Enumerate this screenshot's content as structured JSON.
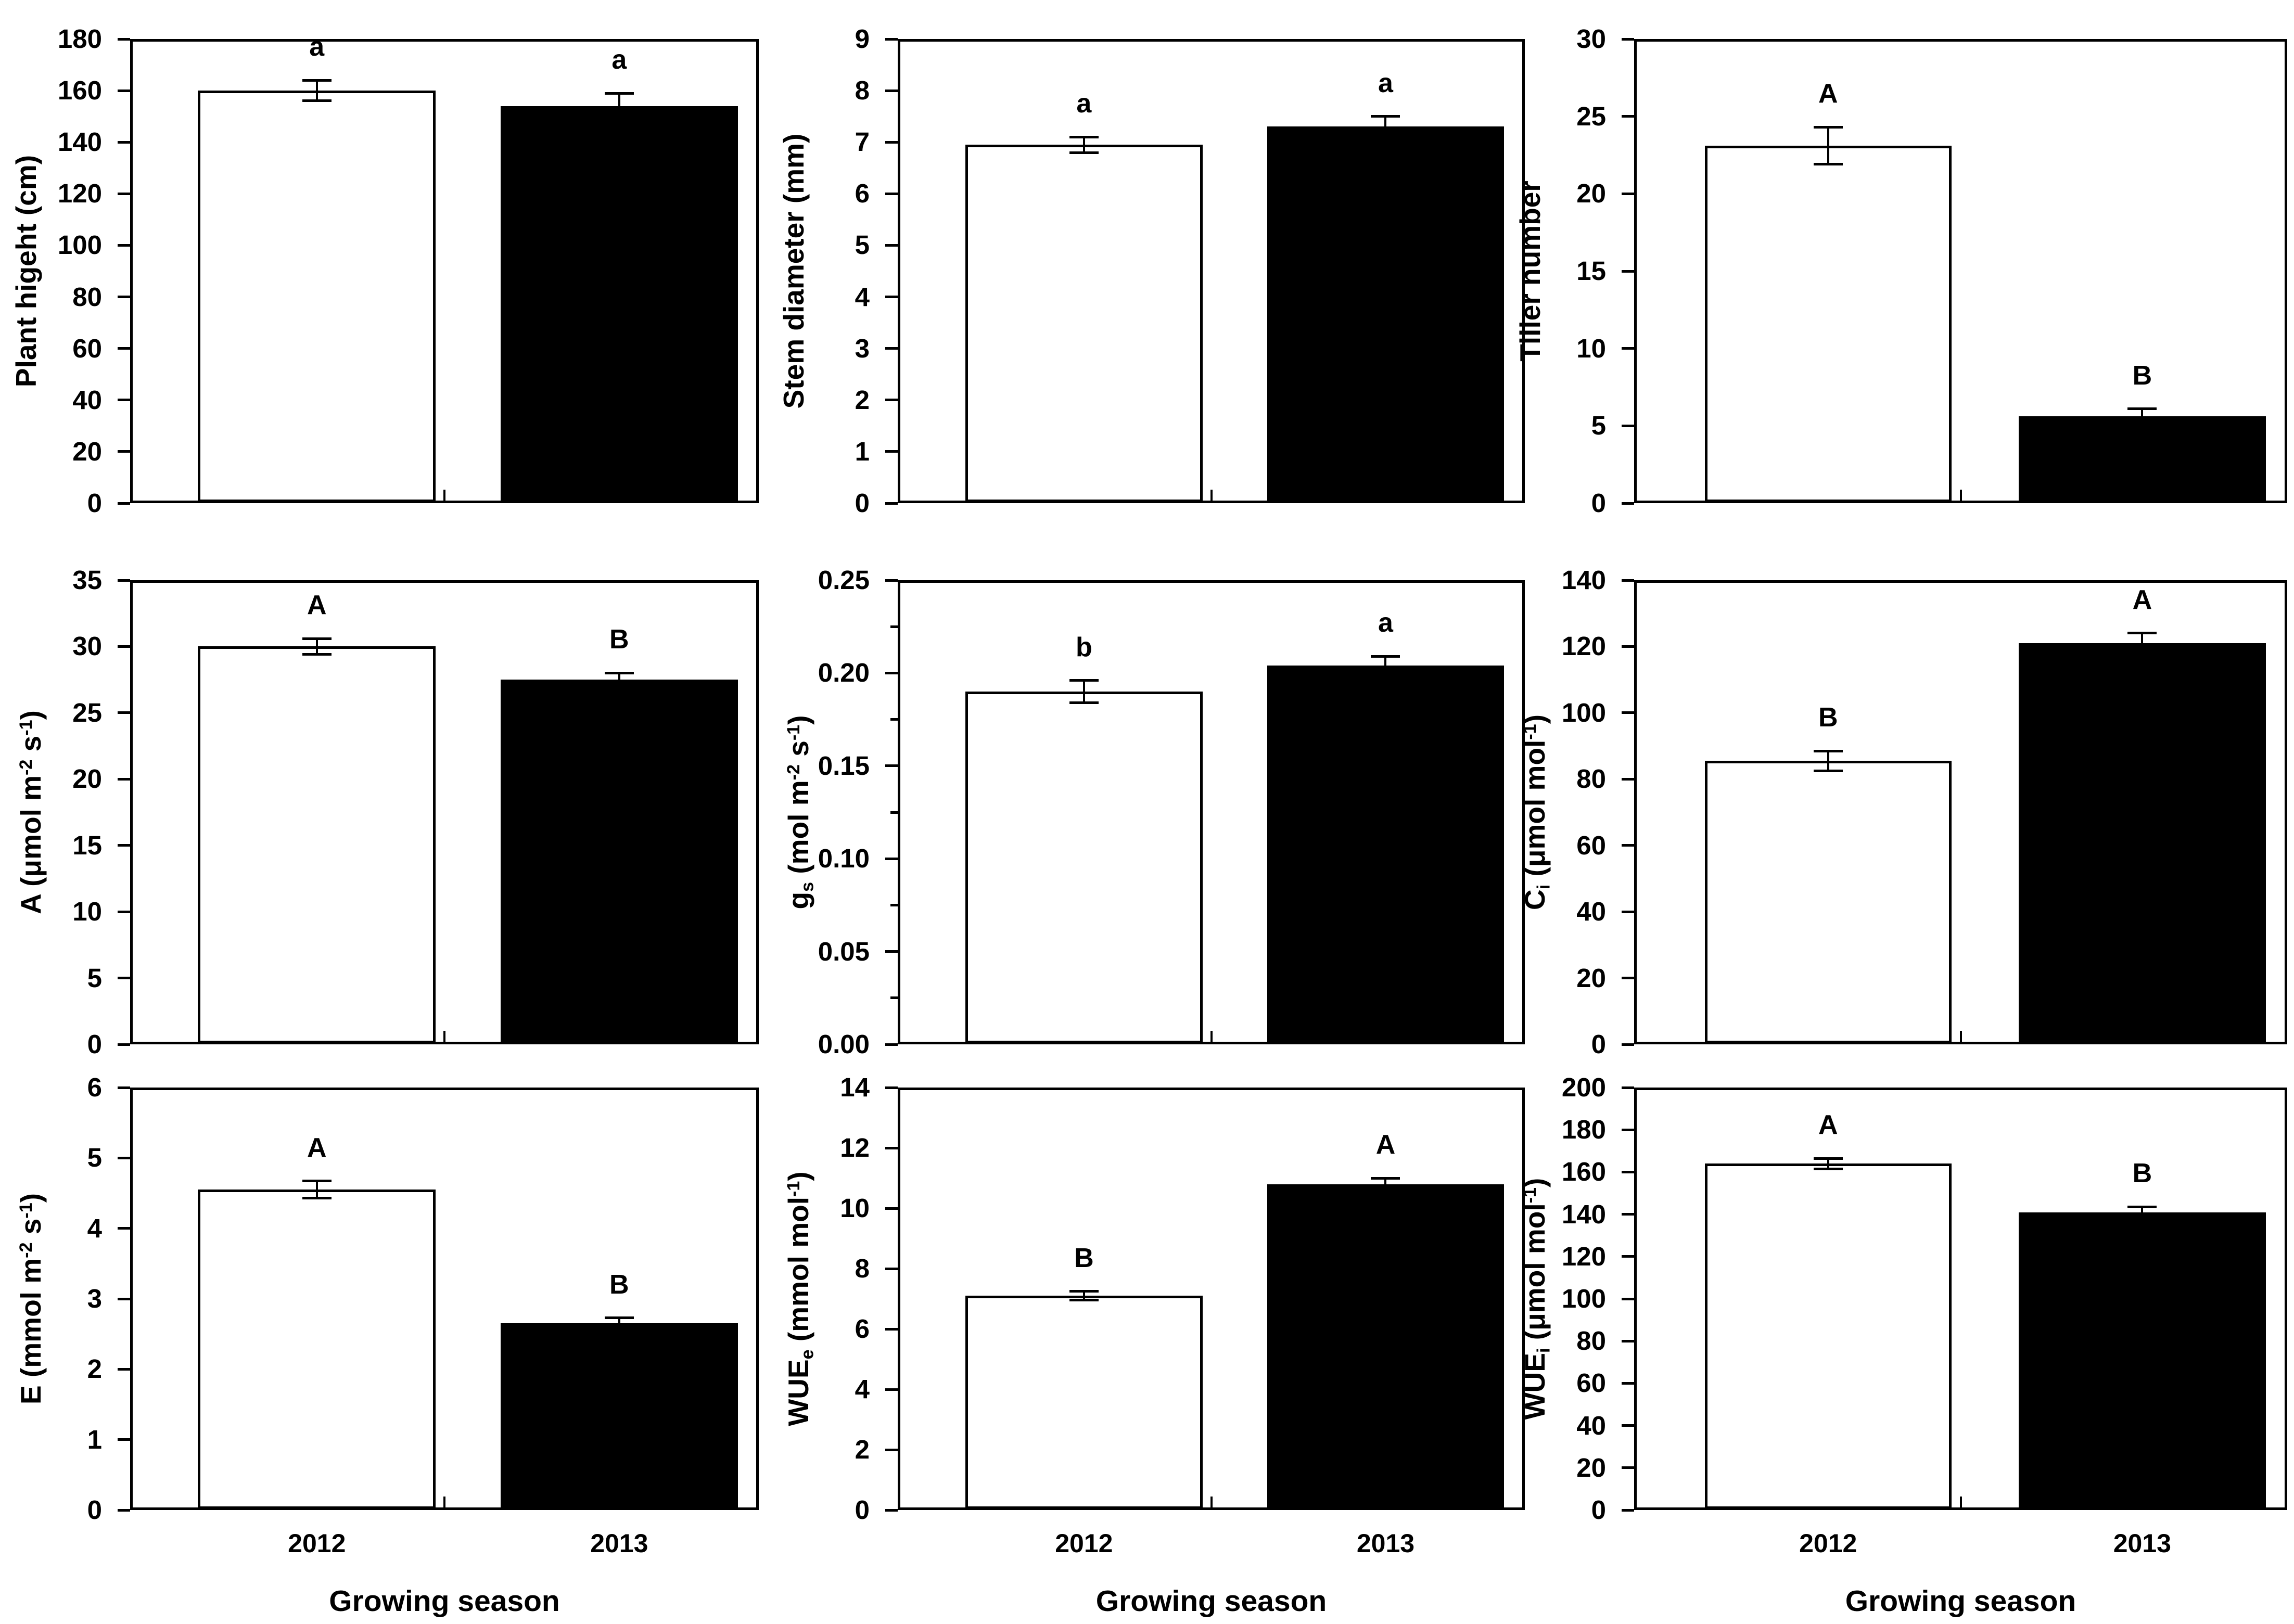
{
  "figure": {
    "background": "#ffffff",
    "frame_color": "#000000",
    "bar_fill_2012": "#ffffff",
    "bar_fill_2013": "#000000",
    "categories": [
      "2012",
      "2013"
    ],
    "x_axis_title": "Growing season"
  },
  "chart_data": [
    {
      "type": "bar",
      "id": "plant-height",
      "row": 0,
      "col": 0,
      "ylabel": [
        {
          "t": "Plant higeht (cm)"
        }
      ],
      "ylim": [
        0,
        180
      ],
      "ytick_major": 20,
      "ytick_decimals": 0,
      "grid": false,
      "categories": [
        "2012",
        "2013"
      ],
      "bars": [
        {
          "category": "2012",
          "value": 160,
          "error": 4,
          "letter": "a",
          "fill": "white"
        },
        {
          "category": "2013",
          "value": 154,
          "error": 5,
          "letter": "a",
          "fill": "black"
        }
      ]
    },
    {
      "type": "bar",
      "id": "stem-diameter",
      "row": 0,
      "col": 1,
      "ylabel": [
        {
          "t": "Stem diameter (mm)"
        }
      ],
      "ylim": [
        0,
        9
      ],
      "ytick_major": 1,
      "ytick_decimals": 0,
      "grid": false,
      "categories": [
        "2012",
        "2013"
      ],
      "bars": [
        {
          "category": "2012",
          "value": 6.95,
          "error": 0.15,
          "letter": "a",
          "fill": "white"
        },
        {
          "category": "2013",
          "value": 7.3,
          "error": 0.2,
          "letter": "a",
          "fill": "black"
        }
      ]
    },
    {
      "type": "bar",
      "id": "tiller-number",
      "row": 0,
      "col": 2,
      "ylabel": [
        {
          "t": "Tiller number"
        }
      ],
      "ylim": [
        0,
        30
      ],
      "ytick_major": 5,
      "ytick_decimals": 0,
      "grid": false,
      "categories": [
        "2012",
        "2013"
      ],
      "bars": [
        {
          "category": "2012",
          "value": 23.1,
          "error": 1.2,
          "letter": "A",
          "fill": "white"
        },
        {
          "category": "2013",
          "value": 5.6,
          "error": 0.5,
          "letter": "B",
          "fill": "black"
        }
      ]
    },
    {
      "type": "bar",
      "id": "net-photosynthesis-A",
      "row": 1,
      "col": 0,
      "ylabel": [
        {
          "t": "A (μmol m"
        },
        {
          "sup": "-2"
        },
        {
          "t": " s"
        },
        {
          "sup": "-1"
        },
        {
          "t": ")"
        }
      ],
      "ylim": [
        0,
        35
      ],
      "ytick_major": 5,
      "ytick_decimals": 0,
      "grid": false,
      "categories": [
        "2012",
        "2013"
      ],
      "bars": [
        {
          "category": "2012",
          "value": 30,
          "error": 0.6,
          "letter": "A",
          "fill": "white"
        },
        {
          "category": "2013",
          "value": 27.5,
          "error": 0.5,
          "letter": "B",
          "fill": "black"
        }
      ]
    },
    {
      "type": "bar",
      "id": "stomatal-conductance-gs",
      "row": 1,
      "col": 1,
      "ylabel": [
        {
          "t": "g"
        },
        {
          "sub": "s"
        },
        {
          "t": " (mol m"
        },
        {
          "sup": "-2"
        },
        {
          "t": " s"
        },
        {
          "sup": "-1"
        },
        {
          "t": ")"
        }
      ],
      "ylim": [
        0,
        0.25
      ],
      "ytick_major": 0.05,
      "ytick_minor": 0.025,
      "ytick_decimals": 2,
      "grid": false,
      "categories": [
        "2012",
        "2013"
      ],
      "bars": [
        {
          "category": "2012",
          "value": 0.19,
          "error": 0.006,
          "letter": "b",
          "fill": "white"
        },
        {
          "category": "2013",
          "value": 0.204,
          "error": 0.005,
          "letter": "a",
          "fill": "black"
        }
      ]
    },
    {
      "type": "bar",
      "id": "intercellular-co2-Ci",
      "row": 1,
      "col": 2,
      "ylabel": [
        {
          "t": "C"
        },
        {
          "sub": "i"
        },
        {
          "t": " (μmol mol"
        },
        {
          "sup": "-1"
        },
        {
          "t": ")"
        }
      ],
      "ylim": [
        0,
        140
      ],
      "ytick_major": 20,
      "ytick_decimals": 0,
      "grid": false,
      "categories": [
        "2012",
        "2013"
      ],
      "bars": [
        {
          "category": "2012",
          "value": 85.5,
          "error": 3,
          "letter": "B",
          "fill": "white"
        },
        {
          "category": "2013",
          "value": 121,
          "error": 3,
          "letter": "A",
          "fill": "black"
        }
      ]
    },
    {
      "type": "bar",
      "id": "transpiration-E",
      "row": 2,
      "col": 0,
      "ylabel": [
        {
          "t": "E (mmol m"
        },
        {
          "sup": "-2"
        },
        {
          "t": " s"
        },
        {
          "sup": "-1"
        },
        {
          "t": ")"
        }
      ],
      "ylim": [
        0,
        6
      ],
      "ytick_major": 1,
      "ytick_decimals": 0,
      "grid": false,
      "show_x_labels": true,
      "xlabel": "Growing season",
      "categories": [
        "2012",
        "2013"
      ],
      "bars": [
        {
          "category": "2012",
          "value": 4.55,
          "error": 0.12,
          "letter": "A",
          "fill": "white"
        },
        {
          "category": "2013",
          "value": 2.65,
          "error": 0.08,
          "letter": "B",
          "fill": "black"
        }
      ]
    },
    {
      "type": "bar",
      "id": "water-use-efficiency-WUEe",
      "row": 2,
      "col": 1,
      "ylabel": [
        {
          "t": "WUE"
        },
        {
          "sub": "e"
        },
        {
          "t": " (mmol mol"
        },
        {
          "sup": "-1"
        },
        {
          "t": ")"
        }
      ],
      "ylim": [
        0,
        14
      ],
      "ytick_major": 2,
      "ytick_decimals": 0,
      "grid": false,
      "show_x_labels": true,
      "xlabel": "Growing season",
      "categories": [
        "2012",
        "2013"
      ],
      "bars": [
        {
          "category": "2012",
          "value": 7.1,
          "error": 0.15,
          "letter": "B",
          "fill": "white"
        },
        {
          "category": "2013",
          "value": 10.8,
          "error": 0.2,
          "letter": "A",
          "fill": "black"
        }
      ]
    },
    {
      "type": "bar",
      "id": "water-use-efficiency-WUEi",
      "row": 2,
      "col": 2,
      "ylabel": [
        {
          "t": "WUE"
        },
        {
          "sub": "i"
        },
        {
          "t": " (μmol mol"
        },
        {
          "sup": "-1"
        },
        {
          "t": ")"
        }
      ],
      "ylim": [
        0,
        200
      ],
      "ytick_major": 20,
      "ytick_decimals": 0,
      "grid": false,
      "show_x_labels": true,
      "xlabel": "Growing season",
      "categories": [
        "2012",
        "2013"
      ],
      "bars": [
        {
          "category": "2012",
          "value": 164,
          "error": 2.5,
          "letter": "A",
          "fill": "white"
        },
        {
          "category": "2013",
          "value": 141,
          "error": 2.5,
          "letter": "B",
          "fill": "black"
        }
      ]
    }
  ]
}
